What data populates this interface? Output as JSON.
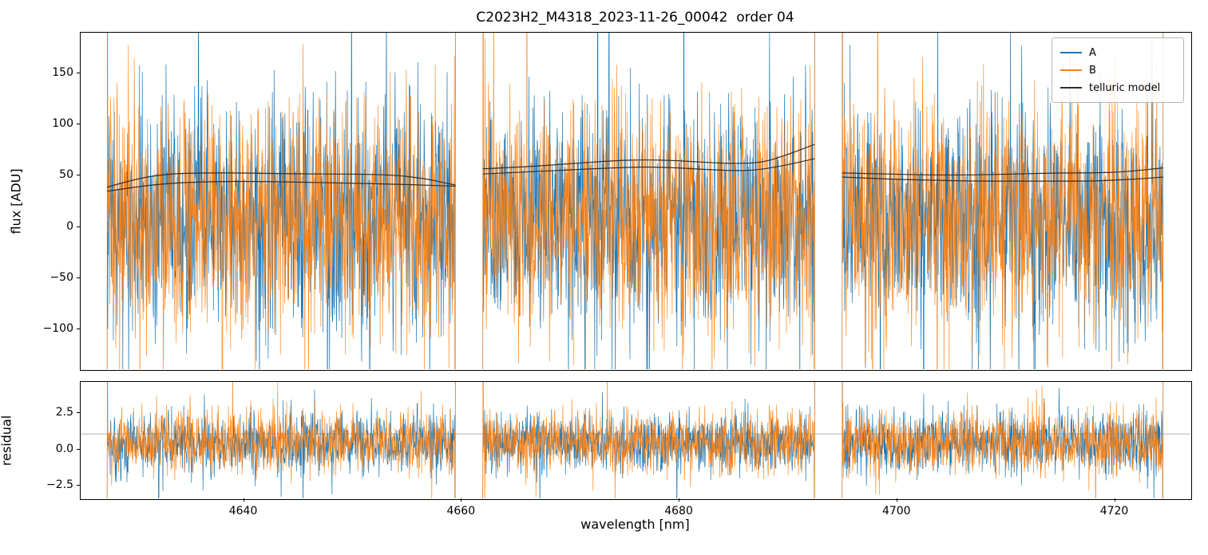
{
  "chart_data": {
    "type": "line",
    "title": "C2023H2_M4318_2023-11-26_00042  order 04",
    "xlabel": "wavelength [nm]",
    "ylabel_top": "flux [ADU]",
    "ylabel_bottom": "residual",
    "legend": [
      "A",
      "B",
      "telluric model"
    ],
    "colors": {
      "A": "#1f77b4",
      "B": "#ff7f0e",
      "telluric": "#2e2e2e",
      "ref_line": "#9a9a9a"
    },
    "xlim": [
      4625,
      4727
    ],
    "x_ticks": [
      4640,
      4660,
      4680,
      4700,
      4720
    ],
    "x_tick_labels": [
      "4640",
      "4660",
      "4680",
      "4700",
      "4720"
    ],
    "top_panel": {
      "ylim": [
        -140,
        190
      ],
      "y_ticks": [
        -100,
        -50,
        0,
        50,
        100,
        150
      ],
      "y_tick_labels": [
        "−100",
        "−50",
        "0",
        "50",
        "100",
        "150"
      ]
    },
    "bottom_panel": {
      "ylim": [
        -3.4,
        4.6
      ],
      "y_ticks": [
        -2.5,
        0.0,
        2.5
      ],
      "y_tick_labels": [
        "−2.5",
        "0.0",
        "2.5"
      ],
      "ref_line": 1.0
    },
    "segments": [
      {
        "x_start": 4627.5,
        "x_end": 4659.5
      },
      {
        "x_start": 4662.0,
        "x_end": 4692.5
      },
      {
        "x_start": 4695.0,
        "x_end": 4724.5
      }
    ],
    "noise": {
      "flux": {
        "mean": 8,
        "std": 55,
        "spike_prob": 0.012,
        "spike_scale": 3.5,
        "points_per_segment": 1000,
        "seed": 42
      },
      "residual": {
        "mean": 0.4,
        "std": 1.05,
        "spike_prob": 0.01,
        "spike_scale": 2.5,
        "points_per_segment": 1000,
        "seed": 7
      }
    },
    "telluric_model": {
      "label": "telluric model",
      "curves": [
        {
          "upper": [
            [
              4627.5,
              38
            ],
            [
              4630,
              46
            ],
            [
              4633,
              51
            ],
            [
              4636,
              52
            ],
            [
              4640,
              52
            ],
            [
              4645,
              51
            ],
            [
              4650,
              51
            ],
            [
              4654,
              50
            ],
            [
              4657,
              46
            ],
            [
              4659.5,
              40
            ]
          ],
          "lower": [
            [
              4627.5,
              34
            ],
            [
              4631,
              40
            ],
            [
              4635,
              43
            ],
            [
              4640,
              44
            ],
            [
              4645,
              43
            ],
            [
              4650,
              42
            ],
            [
              4654,
              41
            ],
            [
              4657,
              40
            ],
            [
              4659.5,
              39
            ]
          ]
        },
        {
          "upper": [
            [
              4662,
              56
            ],
            [
              4666,
              58
            ],
            [
              4670,
              61
            ],
            [
              4674,
              64
            ],
            [
              4677,
              65
            ],
            [
              4680,
              64
            ],
            [
              4683,
              62
            ],
            [
              4686,
              61
            ],
            [
              4688,
              63
            ],
            [
              4690,
              70
            ],
            [
              4692.5,
              80
            ]
          ],
          "lower": [
            [
              4662,
              51
            ],
            [
              4666,
              53
            ],
            [
              4670,
              55
            ],
            [
              4674,
              57
            ],
            [
              4677,
              58
            ],
            [
              4680,
              57
            ],
            [
              4683,
              55
            ],
            [
              4686,
              54
            ],
            [
              4688,
              56
            ],
            [
              4690,
              60
            ],
            [
              4692.5,
              66
            ]
          ]
        },
        {
          "upper": [
            [
              4695,
              52
            ],
            [
              4699,
              51
            ],
            [
              4703,
              50
            ],
            [
              4707,
              50
            ],
            [
              4711,
              51
            ],
            [
              4715,
              52
            ],
            [
              4718,
              52
            ],
            [
              4721,
              53
            ],
            [
              4724.5,
              57
            ]
          ],
          "lower": [
            [
              4695,
              48
            ],
            [
              4699,
              46
            ],
            [
              4703,
              45
            ],
            [
              4707,
              44
            ],
            [
              4711,
              44
            ],
            [
              4715,
              44
            ],
            [
              4718,
              44
            ],
            [
              4720,
              45
            ],
            [
              4722,
              46
            ],
            [
              4724.5,
              48
            ]
          ]
        }
      ]
    }
  }
}
